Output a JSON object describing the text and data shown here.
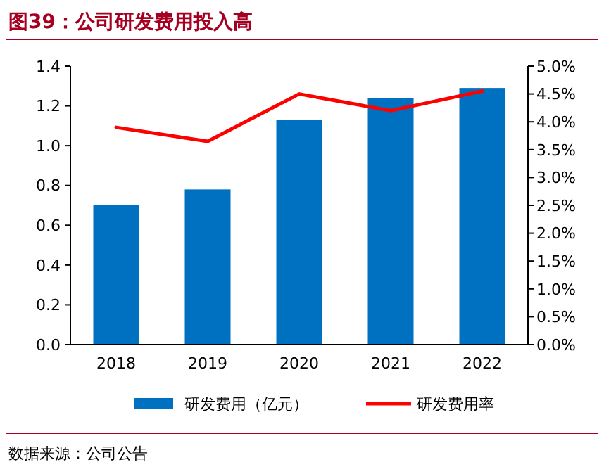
{
  "chart_data": {
    "type": "bar",
    "title": "图39：公司研发费用投入高",
    "categories": [
      "2018",
      "2019",
      "2020",
      "2021",
      "2022"
    ],
    "series": [
      {
        "name": "研发费用（亿元）",
        "color": "#0070c0",
        "values": [
          0.7,
          0.78,
          1.13,
          1.24,
          1.29
        ]
      },
      {
        "name": "研发费用率",
        "type": "line",
        "axis": "y2",
        "color": "#ff0000",
        "values": [
          3.9,
          3.65,
          4.5,
          4.2,
          4.55
        ]
      }
    ],
    "ylim": [
      0,
      1.4
    ],
    "yticks": [
      {
        "value": 0,
        "label": "0.0"
      },
      {
        "value": 0.2,
        "label": "0.2"
      },
      {
        "value": 0.4,
        "label": "0.4"
      },
      {
        "value": 0.6,
        "label": "0.6"
      },
      {
        "value": 0.8,
        "label": "0.8"
      },
      {
        "value": 1,
        "label": "1.0"
      },
      {
        "value": 1.2,
        "label": "1.2"
      },
      {
        "value": 1.4,
        "label": "1.4"
      }
    ],
    "y2lim": [
      0,
      5
    ],
    "y2ticks": [
      {
        "value": 0,
        "label": "0.0%"
      },
      {
        "value": 0.5,
        "label": "0.5%"
      },
      {
        "value": 1,
        "label": "1.0%"
      },
      {
        "value": 1.5,
        "label": "1.5%"
      },
      {
        "value": 2,
        "label": "2.0%"
      },
      {
        "value": 2.5,
        "label": "2.5%"
      },
      {
        "value": 3,
        "label": "3.0%"
      },
      {
        "value": 3.5,
        "label": "3.5%"
      },
      {
        "value": 4,
        "label": "4.0%"
      },
      {
        "value": 4.5,
        "label": "4.5%"
      },
      {
        "value": 5,
        "label": "5.0%"
      }
    ],
    "legend": "bottom",
    "grid": false,
    "annotations": [
      "数据来源：公司公告"
    ]
  }
}
